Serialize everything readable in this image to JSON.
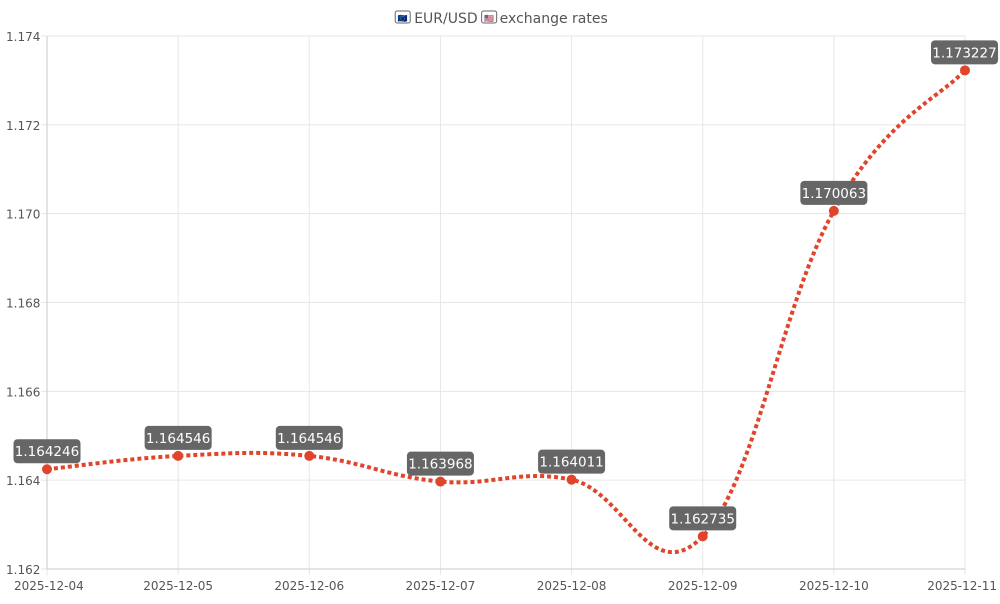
{
  "chart_data": {
    "type": "line",
    "title": "EUR/USD exchange rates",
    "title_flag_left": "🇪🇺",
    "title_flag_right": "🇺🇸",
    "xlabel": "",
    "ylabel": "",
    "x": [
      "2025-12-04",
      "2025-12-05",
      "2025-12-06",
      "2025-12-07",
      "2025-12-08",
      "2025-12-09",
      "2025-12-10",
      "2025-12-11"
    ],
    "series": [
      {
        "values": [
          1.164246,
          1.164546,
          1.164546,
          1.163968,
          1.164011,
          1.162735,
          1.170063,
          1.173227
        ],
        "data_labels": [
          "1.164246",
          "1.164546",
          "1.164546",
          "1.163968",
          "1.164011",
          "1.162735",
          "1.170063",
          "1.173227"
        ],
        "color": "#e0452b",
        "line_style": "dotted",
        "smooth": true
      }
    ],
    "ylim": [
      1.162,
      1.174
    ],
    "y_ticks": [
      1.162,
      1.164,
      1.166,
      1.168,
      1.17,
      1.172,
      1.174
    ],
    "y_tick_labels": [
      "1.162",
      "1.164",
      "1.166",
      "1.168",
      "1.170",
      "1.172",
      "1.174"
    ],
    "grid": true,
    "legend": "none",
    "colors": {
      "grid": "#e6e6e6",
      "axis": "#c8c8c8",
      "label_bg": "#666666",
      "label_text": "#ffffff",
      "tick_text": "#555555",
      "title_text": "#555555"
    }
  }
}
